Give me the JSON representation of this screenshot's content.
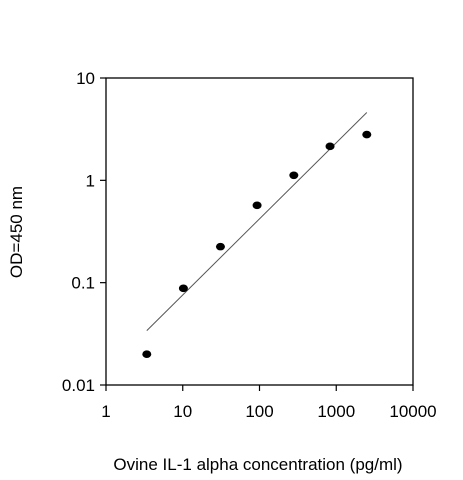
{
  "chart_data": {
    "type": "scatter",
    "title": "",
    "xlabel": "Ovine IL-1 alpha concentration (pg/ml)",
    "ylabel": "OD=450 nm",
    "x_scale": "log",
    "y_scale": "log",
    "xlim": [
      1,
      10000
    ],
    "ylim": [
      0.01,
      10
    ],
    "x_ticks": [
      1,
      10,
      100,
      1000,
      10000
    ],
    "x_tick_labels": [
      "1",
      "10",
      "100",
      "1000",
      "10000"
    ],
    "y_ticks": [
      0.01,
      0.1,
      1,
      10
    ],
    "y_tick_labels": [
      "0.01",
      "0.1",
      "1",
      "10"
    ],
    "grid": false,
    "legend": "none",
    "series": [
      {
        "points": [
          {
            "x": 3.4,
            "y": 0.02
          },
          {
            "x": 10.2,
            "y": 0.088
          },
          {
            "x": 31,
            "y": 0.225
          },
          {
            "x": 93,
            "y": 0.57
          },
          {
            "x": 280,
            "y": 1.12
          },
          {
            "x": 830,
            "y": 2.15
          },
          {
            "x": 2500,
            "y": 2.8
          }
        ],
        "marker_color": "#000000"
      }
    ],
    "trendline": {
      "from": {
        "x": 3.4,
        "y": 0.034
      },
      "to": {
        "x": 2500,
        "y": 4.6
      },
      "color": "#555555"
    }
  }
}
